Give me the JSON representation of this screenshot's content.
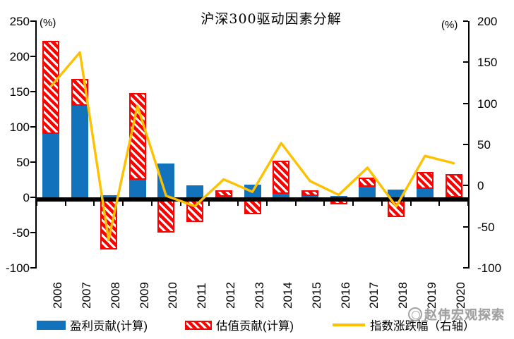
{
  "title": "沪深300驱动因素分解",
  "left_axis": {
    "unit": "(%)",
    "ticks": [
      250,
      200,
      150,
      100,
      50,
      0,
      -50,
      -100
    ],
    "min": -100,
    "max": 250
  },
  "right_axis": {
    "unit": "(%)",
    "ticks": [
      200,
      150,
      100,
      50,
      0,
      -50,
      -100
    ],
    "min": -100,
    "max": 200
  },
  "chart_data": {
    "type": "bar",
    "subtype": "stacked-bars-with-line",
    "title": "沪深300驱动因素分解",
    "categories": [
      "2006",
      "2007",
      "2008",
      "2009",
      "2010",
      "2011",
      "2012",
      "2013",
      "2014",
      "2015",
      "2016",
      "2017",
      "2018",
      "2019",
      "2020"
    ],
    "series": [
      {
        "name": "盈利贡献(计算)",
        "type": "bar",
        "stack": "s1",
        "axis": "left",
        "color": "#1272BC",
        "values": [
          90,
          130,
          3,
          25,
          48,
          17,
          1,
          18,
          5,
          2,
          2,
          15,
          11,
          12,
          0
        ]
      },
      {
        "name": "估值贡献(计算)",
        "type": "bar",
        "stack": "s1",
        "axis": "left",
        "color": "#FE0000",
        "pattern": "white-diagonal-hatch",
        "values": [
          132,
          38,
          -74,
          123,
          -50,
          -35,
          9,
          -24,
          47,
          8,
          -10,
          13,
          -28,
          24,
          33
        ]
      },
      {
        "name": "指数涨跌幅（右轴）",
        "type": "line",
        "axis": "right",
        "color": "#FFC000",
        "values": [
          121,
          162,
          -66,
          97,
          -12.5,
          -25,
          7.6,
          -7.6,
          51.7,
          5.6,
          -11.3,
          21.8,
          -25.3,
          36.1,
          27.2
        ]
      }
    ],
    "left_ylim": [
      -100,
      250
    ],
    "right_ylim": [
      -100,
      200
    ],
    "grid": false,
    "legend_position": "bottom"
  },
  "legend": [
    {
      "label": "盈利贡献(计算)",
      "swatch": "blue-bar"
    },
    {
      "label": "估值贡献(计算)",
      "swatch": "red-hatched-bar"
    },
    {
      "label": "指数涨跌幅（右轴）",
      "swatch": "yellow-line"
    }
  ],
  "watermark": {
    "text": "赵伟宏观探索"
  },
  "colors": {
    "earnings_bar": "#1272BC",
    "valuation_bar": "#FE0000",
    "index_line": "#FFC000",
    "axis": "#000000",
    "watermark": "#8C8C8C"
  }
}
